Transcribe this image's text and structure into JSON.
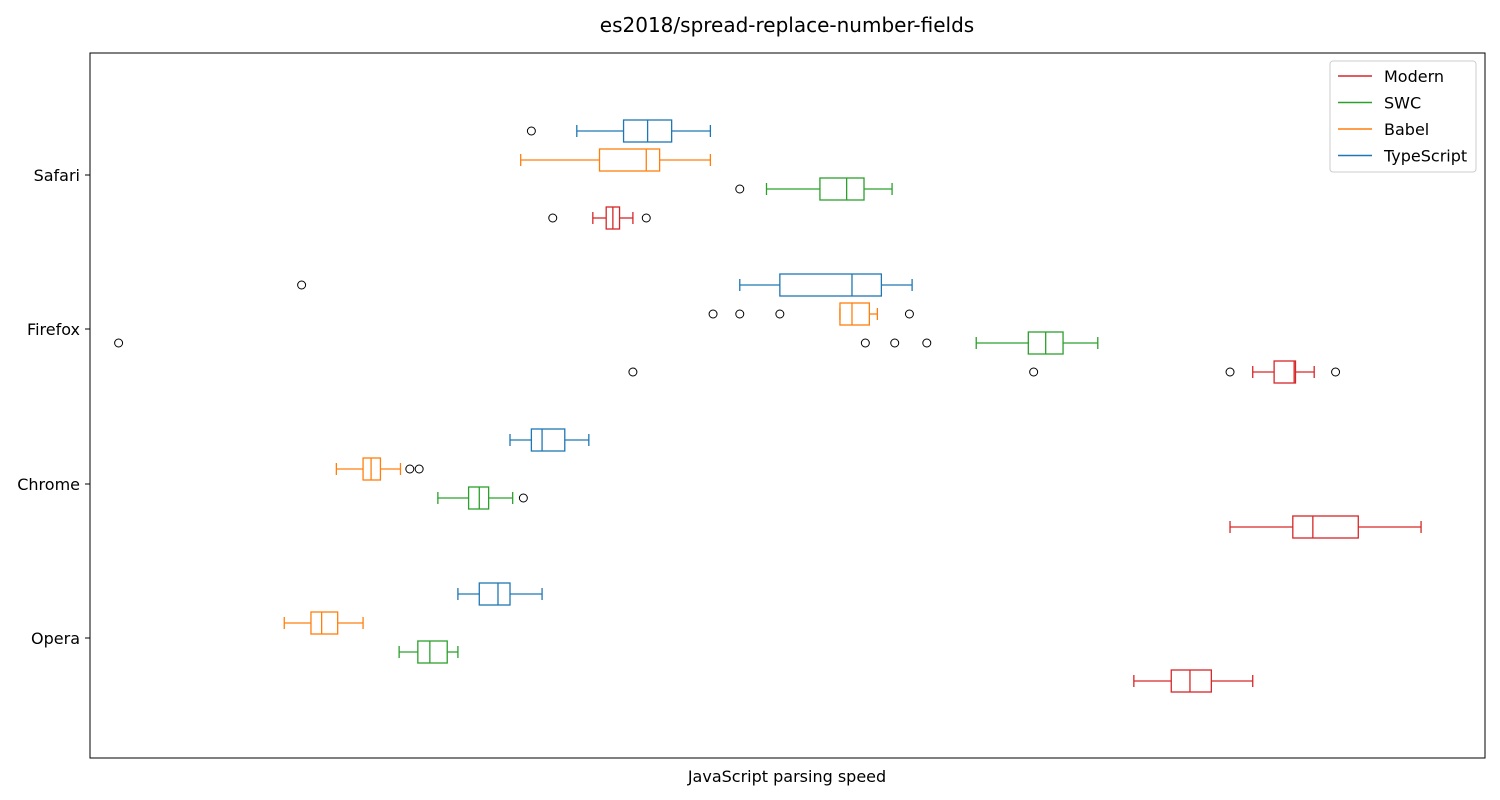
{
  "chart_data": {
    "type": "box",
    "orientation": "horizontal",
    "title": "es2018/spread-replace-number-fields",
    "xlabel": "JavaScript parsing speed",
    "ylabel": "",
    "categories": [
      "Safari",
      "Firefox",
      "Chrome",
      "Opera"
    ],
    "xlim": [
      0,
      100
    ],
    "grid": false,
    "legend": {
      "placement": "top-right",
      "entries": [
        "Modern",
        "SWC",
        "Babel",
        "TypeScript"
      ]
    },
    "series": [
      {
        "name": "Modern",
        "color": "#d62728",
        "boxes": [
          {
            "category": "Safari",
            "whisker_low": 33.0,
            "q1": 34.0,
            "median": 34.5,
            "q3": 35.0,
            "whisker_high": 36.0,
            "outliers": [
              30.0,
              37.0
            ]
          },
          {
            "category": "Firefox",
            "whisker_low": 82.4,
            "q1": 84.0,
            "median": 85.5,
            "q3": 85.6,
            "whisker_high": 87.0,
            "outliers": [
              36.0,
              66.0,
              80.7,
              88.6
            ]
          },
          {
            "category": "Chrome",
            "whisker_low": 80.7,
            "q1": 85.4,
            "median": 86.9,
            "q3": 90.3,
            "whisker_high": 95.0,
            "outliers": []
          },
          {
            "category": "Opera",
            "whisker_low": 73.5,
            "q1": 76.3,
            "median": 77.7,
            "q3": 79.3,
            "whisker_high": 82.4,
            "outliers": []
          }
        ]
      },
      {
        "name": "SWC",
        "color": "#2ca02c",
        "boxes": [
          {
            "category": "Safari",
            "whisker_low": 46.0,
            "q1": 50.0,
            "median": 52.0,
            "q3": 53.3,
            "whisker_high": 55.4,
            "outliers": [
              44.0
            ]
          },
          {
            "category": "Firefox",
            "whisker_low": 61.7,
            "q1": 65.6,
            "median": 66.9,
            "q3": 68.2,
            "whisker_high": 70.8,
            "outliers": [
              -2.5,
              53.4,
              55.6,
              58.0
            ]
          },
          {
            "category": "Chrome",
            "whisker_low": 21.4,
            "q1": 23.7,
            "median": 24.5,
            "q3": 25.2,
            "whisker_high": 27.0,
            "outliers": [
              27.8
            ]
          },
          {
            "category": "Opera",
            "whisker_low": 18.5,
            "q1": 19.9,
            "median": 20.8,
            "q3": 22.1,
            "whisker_high": 22.9,
            "outliers": []
          }
        ]
      },
      {
        "name": "Babel",
        "color": "#ff7f0e",
        "boxes": [
          {
            "category": "Safari",
            "whisker_low": 27.6,
            "q1": 33.5,
            "median": 37.0,
            "q3": 38.0,
            "whisker_high": 41.8,
            "outliers": []
          },
          {
            "category": "Firefox",
            "whisker_low": 51.5,
            "q1": 51.5,
            "median": 52.4,
            "q3": 53.7,
            "whisker_high": 54.3,
            "outliers": [
              42.0,
              44.0,
              47.0,
              56.7
            ]
          },
          {
            "category": "Chrome",
            "whisker_low": 13.8,
            "q1": 15.8,
            "median": 16.4,
            "q3": 17.1,
            "whisker_high": 18.6,
            "outliers": [
              19.3,
              20.0
            ]
          },
          {
            "category": "Opera",
            "whisker_low": 9.9,
            "q1": 11.9,
            "median": 12.7,
            "q3": 13.9,
            "whisker_high": 15.8,
            "outliers": []
          }
        ]
      },
      {
        "name": "TypeScript",
        "color": "#1f77b4",
        "boxes": [
          {
            "category": "Safari",
            "whisker_low": 31.8,
            "q1": 35.3,
            "median": 37.1,
            "q3": 38.9,
            "whisker_high": 41.8,
            "outliers": [
              28.4
            ]
          },
          {
            "category": "Firefox",
            "whisker_low": 44.0,
            "q1": 47.0,
            "median": 52.4,
            "q3": 54.6,
            "whisker_high": 56.9,
            "outliers": [
              11.2
            ]
          },
          {
            "category": "Chrome",
            "whisker_low": 26.8,
            "q1": 28.4,
            "median": 29.2,
            "q3": 30.9,
            "whisker_high": 32.7,
            "outliers": []
          },
          {
            "category": "Opera",
            "whisker_low": 22.9,
            "q1": 24.5,
            "median": 25.9,
            "q3": 26.8,
            "whisker_high": 29.2,
            "outliers": []
          }
        ]
      }
    ]
  }
}
